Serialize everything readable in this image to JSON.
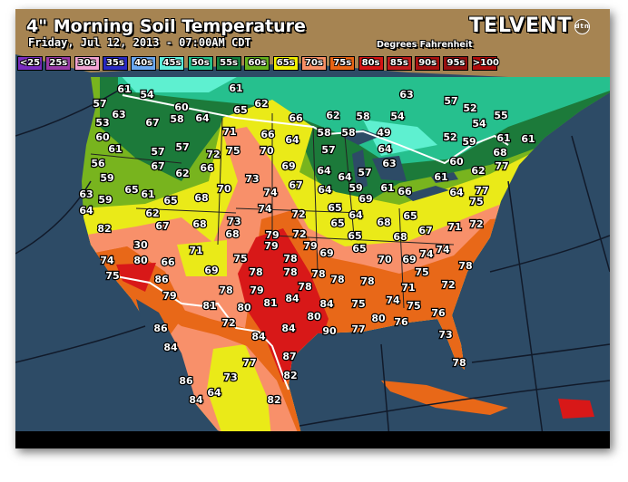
{
  "header": {
    "title": "4\" Morning Soil Temperature",
    "subtitle": "Friday, Jul 12, 2013 - 07:00AM CDT",
    "units": "Degrees Fahrenheit",
    "logo": "TELVENT",
    "logo_badge": "dtn"
  },
  "legend": [
    {
      "label": "<25",
      "color": "#7a2cc0"
    },
    {
      "label": "25s",
      "color": "#9a3aa8"
    },
    {
      "label": "30s",
      "color": "#f2a4d4"
    },
    {
      "label": "35s",
      "color": "#2a2ac4"
    },
    {
      "label": "40s",
      "color": "#6aa8f2"
    },
    {
      "label": "45s",
      "color": "#5ef0dc"
    },
    {
      "label": "50s",
      "color": "#22c08c"
    },
    {
      "label": "55s",
      "color": "#127e3e"
    },
    {
      "label": "60s",
      "color": "#66b21e"
    },
    {
      "label": "65s",
      "color": "#f2f000"
    },
    {
      "label": "70s",
      "color": "#f89066"
    },
    {
      "label": "75s",
      "color": "#e86414"
    },
    {
      "label": "80s",
      "color": "#d41414"
    },
    {
      "label": "85s",
      "color": "#c01a1a"
    },
    {
      "label": "90s",
      "color": "#a81010"
    },
    {
      "label": "95s",
      "color": "#961010"
    },
    {
      "label": ">100",
      "color": "#b00c0c"
    }
  ],
  "map_colors": {
    "ocean": "#2d4b66",
    "canada_land": "#a68452",
    "45s": "#5ef0d0",
    "50s": "#26c08e",
    "55s": "#1c7a3a",
    "60s": "#78b41e",
    "65s": "#eaea18",
    "70s": "#f8906a",
    "75s": "#e86818",
    "80s": "#d81818",
    "border": "#ffffff"
  },
  "readings": [
    "61",
    "54",
    "57",
    "63",
    "61",
    "62",
    "65",
    "60",
    "64",
    "67",
    "58",
    "53",
    "66",
    "62",
    "71",
    "66",
    "64",
    "58",
    "60",
    "61",
    "57",
    "57",
    "72",
    "75",
    "70",
    "67",
    "66",
    "62",
    "69",
    "64",
    "56",
    "59",
    "73",
    "70",
    "74",
    "67",
    "65",
    "61",
    "65",
    "68",
    "74",
    "72",
    "59",
    "63",
    "64",
    "62",
    "67",
    "68",
    "73",
    "68",
    "79",
    "72",
    "82",
    "65",
    "79",
    "63",
    "57",
    "52",
    "54",
    "54",
    "55",
    "58",
    "58",
    "49",
    "52",
    "59",
    "61",
    "61",
    "57",
    "64",
    "60",
    "63",
    "68",
    "64",
    "57",
    "61",
    "62",
    "77",
    "64",
    "59",
    "69",
    "61",
    "66",
    "64",
    "77",
    "65",
    "64",
    "75",
    "68",
    "65",
    "72",
    "71",
    "68",
    "67",
    "65",
    "74",
    "30",
    "74",
    "80",
    "66",
    "71",
    "75",
    "86",
    "69",
    "75",
    "78",
    "78",
    "79",
    "78",
    "78",
    "78",
    "79",
    "78",
    "79",
    "80",
    "81",
    "84",
    "84",
    "81",
    "72",
    "84",
    "80",
    "90",
    "86",
    "84",
    "84",
    "87",
    "77",
    "73",
    "82",
    "86",
    "64",
    "84",
    "82",
    "69",
    "65",
    "70",
    "69",
    "74",
    "78",
    "78",
    "78",
    "75",
    "71",
    "72",
    "75",
    "74",
    "75",
    "76",
    "80",
    "76",
    "77",
    "73",
    "78",
    "82"
  ]
}
